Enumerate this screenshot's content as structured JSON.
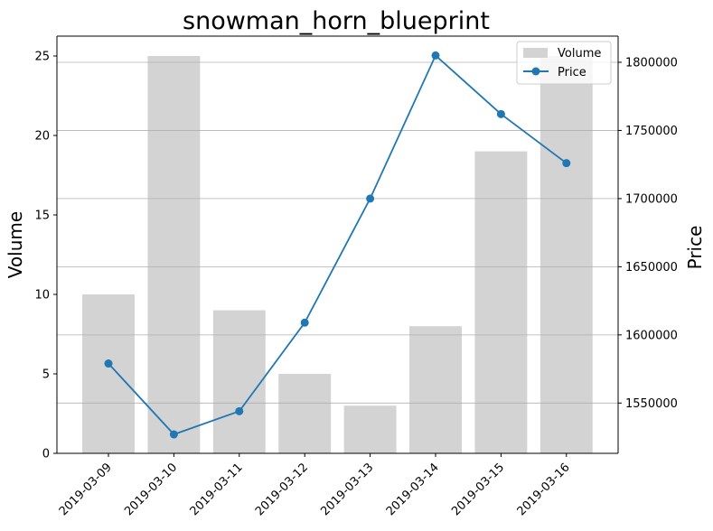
{
  "chart_data": {
    "type": "bar",
    "title": "snowman_horn_blueprint",
    "xlabel": "",
    "ylabel": "Volume",
    "ylabel_right": "Price",
    "categories": [
      "2019-03-09",
      "2019-03-10",
      "2019-03-11",
      "2019-03-12",
      "2019-03-13",
      "2019-03-14",
      "2019-03-15",
      "2019-03-16"
    ],
    "series": [
      {
        "name": "Volume",
        "type": "bar",
        "axis": "left",
        "color": "#d3d3d3",
        "values": [
          10,
          25,
          9,
          5,
          3,
          8,
          19,
          25
        ]
      },
      {
        "name": "Price",
        "type": "line",
        "axis": "right",
        "color": "#1f77b4",
        "marker": "circle",
        "values": [
          1579000,
          1527000,
          1544000,
          1609000,
          1700000,
          1805000,
          1762000,
          1726000
        ]
      }
    ],
    "ylim": [
      0,
      26.25
    ],
    "ylim_right": [
      1513100,
      1819200
    ],
    "yticks": [
      0,
      5,
      10,
      15,
      20,
      25
    ],
    "yticks_right": [
      1550000,
      1600000,
      1650000,
      1700000,
      1750000,
      1800000
    ],
    "grid": "horizontal lines at right-axis ticks",
    "legend_position": "top-right"
  }
}
